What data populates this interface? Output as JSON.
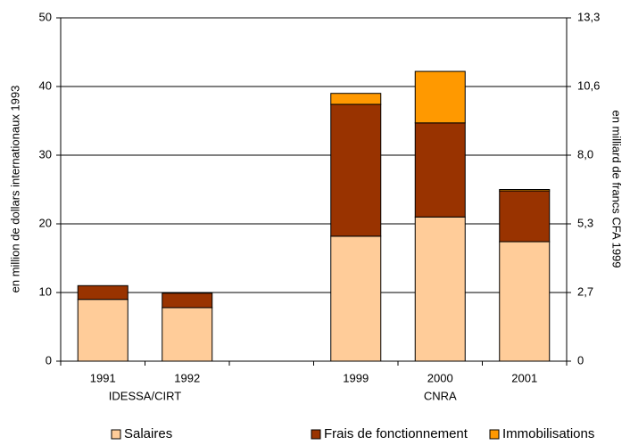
{
  "chart_data": {
    "type": "stacked_bar",
    "y_label": "en million de dollars internationaux 1993",
    "y2_label": "en milliard de francs CFA 1999",
    "categories": [
      "1991",
      "1992",
      null,
      "1999",
      "2000",
      "2001"
    ],
    "x_groups": [
      {
        "label": "IDESSA/CIRT",
        "categories": [
          "1991",
          "1992"
        ]
      },
      {
        "label": "CNRA",
        "categories": [
          "1999",
          "2000",
          "2001"
        ]
      }
    ],
    "series": [
      {
        "name": "Salaires",
        "color": "#ffcc99",
        "values": [
          9.0,
          7.8,
          null,
          18.2,
          21.0,
          17.4
        ]
      },
      {
        "name": "Frais de fonctionnement",
        "color": "#993300",
        "values": [
          2.0,
          2.1,
          null,
          19.2,
          13.7,
          7.4
        ]
      },
      {
        "name": "Immobilisations",
        "color": "#ff9900",
        "values": [
          null,
          null,
          null,
          1.6,
          7.5,
          0.2
        ]
      }
    ],
    "ylim": [
      0,
      50
    ],
    "yticks": [
      0,
      10,
      20,
      30,
      40,
      50
    ],
    "y2lim": [
      0,
      13.3
    ],
    "y2ticks": [
      0,
      {
        "value": 2.66,
        "label": "2,7"
      },
      {
        "value": 5.32,
        "label": "5,3"
      },
      {
        "value": 7.98,
        "label": "8,0"
      },
      {
        "value": 10.64,
        "label": "10,6"
      },
      {
        "value": 13.3,
        "label": "13,3"
      }
    ],
    "grid": true,
    "legend": "bottom"
  }
}
